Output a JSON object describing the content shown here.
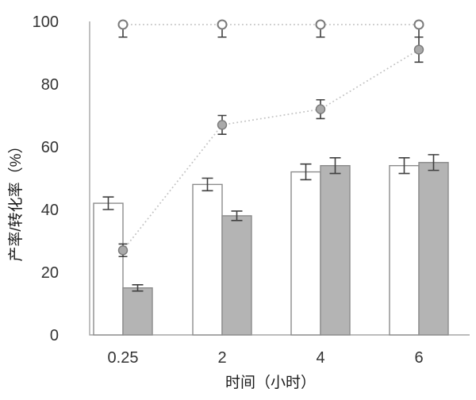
{
  "chart_data": {
    "type": "combo-bar-line",
    "title": "",
    "xlabel": "时间（小时）",
    "ylabel": "产率/转化率（%）",
    "categories": [
      "0.25",
      "2",
      "4",
      "6"
    ],
    "ylim": [
      0,
      100
    ],
    "yticks": [
      0,
      20,
      40,
      60,
      80,
      100
    ],
    "grid": false,
    "legend": null,
    "series": [
      {
        "name": "white-bars",
        "kind": "bar",
        "values": [
          42,
          48,
          52,
          54
        ],
        "yerr": [
          2,
          2,
          2.5,
          2.5
        ],
        "fill": "#ffffff",
        "stroke": "#8c8c8c"
      },
      {
        "name": "gray-bars",
        "kind": "bar",
        "values": [
          15,
          38,
          54,
          55
        ],
        "yerr": [
          1,
          1.5,
          2.5,
          2.5
        ],
        "fill": "#b4b4b4",
        "stroke": "#8c8c8c"
      },
      {
        "name": "filled-circle-dotted-line",
        "kind": "line",
        "values": [
          27,
          67,
          72,
          91
        ],
        "yerr": [
          2,
          3,
          3,
          4
        ],
        "marker": "filled-circle",
        "marker_fill": "#a9a9a9",
        "marker_stroke": "#7a7a7a",
        "line_color": "#c2c2c2"
      },
      {
        "name": "open-circle-dotted-line",
        "kind": "line",
        "values": [
          99,
          99,
          99,
          99
        ],
        "yerr": [
          4,
          4,
          4,
          4
        ],
        "marker": "open-circle",
        "marker_fill": "#ffffff",
        "marker_stroke": "#7a7a7a",
        "line_color": "#c2c2c2"
      }
    ],
    "styles": {
      "error_bar_color": "#404040",
      "axis_color": "#a6a6a6",
      "tick_label_color": "#333333",
      "axis_title_color": "#1a1a1a"
    }
  }
}
